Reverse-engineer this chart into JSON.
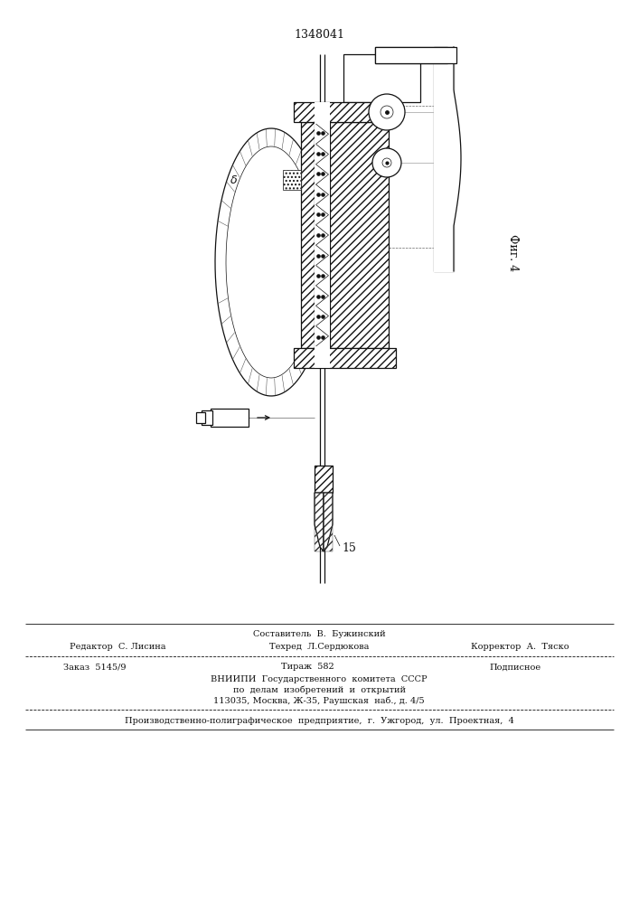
{
  "patent_number": "1348041",
  "fig_label": "Фиг. 4",
  "dim_label": "δ",
  "part_label": "15",
  "footer_line0": "Составитель  В.  Бужинский",
  "footer_line1a": "Редактор  С. Лисина",
  "footer_line1b": "Техред  Л.Сердюкова",
  "footer_line1c": "Корректор  А.  Тяско",
  "footer_line2a": "Заказ  5145/9",
  "footer_line2b": "Тираж  582",
  "footer_line2c": "Подписное",
  "footer_line3": "ВНИИПИ  Государственного  комитета  СССР",
  "footer_line4": "по  делам  изобретений  и  открытий",
  "footer_line5": "113035, Москва, Ж-35, Раушская  наб., д. 4/5",
  "footer_line6": "Производственно-полиграфическое  предприятие,  г.  Ужгород,  ул.  Проектная,  4",
  "bg_color": "#ffffff",
  "line_color": "#111111"
}
